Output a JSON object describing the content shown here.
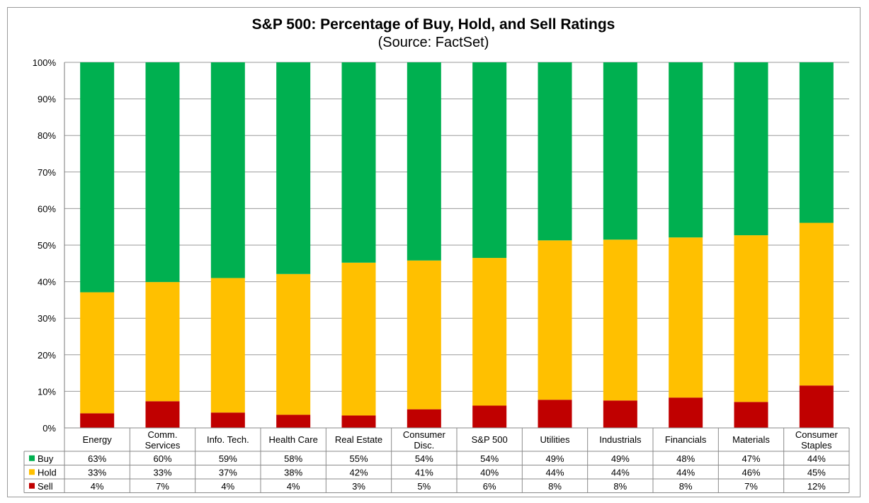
{
  "chart_data": {
    "type": "bar",
    "stacked": true,
    "title": "S&P 500: Percentage of Buy, Hold, and Sell Ratings",
    "subtitle": "(Source: FactSet)",
    "categories": [
      [
        "Energy"
      ],
      [
        "Comm.",
        "Services"
      ],
      [
        "Info. Tech."
      ],
      [
        "Health Care"
      ],
      [
        "Real Estate"
      ],
      [
        "Consumer",
        "Disc."
      ],
      [
        "S&P 500"
      ],
      [
        "Utilities"
      ],
      [
        "Industrials"
      ],
      [
        "Financials"
      ],
      [
        "Materials"
      ],
      [
        "Consumer",
        "Staples"
      ]
    ],
    "series": [
      {
        "name": "Sell",
        "color": "#c00000",
        "values": [
          4,
          7,
          4,
          4,
          3,
          5,
          6,
          8,
          8,
          8,
          7,
          12
        ],
        "heights": [
          4,
          7.3,
          4.2,
          3.6,
          3.4,
          5.1,
          6.1,
          7.7,
          7.5,
          8.3,
          7.1,
          11.6
        ]
      },
      {
        "name": "Hold",
        "color": "#ffc000",
        "values": [
          33,
          33,
          37,
          38,
          42,
          41,
          40,
          44,
          44,
          44,
          46,
          45
        ],
        "heights": [
          33.1,
          32.6,
          36.8,
          38.5,
          41.8,
          40.7,
          40.4,
          43.6,
          44,
          43.8,
          45.6,
          44.5
        ]
      },
      {
        "name": "Buy",
        "color": "#00b050",
        "values": [
          63,
          60,
          59,
          58,
          55,
          54,
          54,
          49,
          49,
          48,
          47,
          44
        ],
        "heights": [
          62.9,
          60.1,
          59,
          57.9,
          54.8,
          54.2,
          53.5,
          48.7,
          48.5,
          47.9,
          47.3,
          43.9
        ]
      }
    ],
    "table_rows": [
      "Buy",
      "Hold",
      "Sell"
    ],
    "yticks": [
      "0%",
      "10%",
      "20%",
      "30%",
      "40%",
      "50%",
      "60%",
      "70%",
      "80%",
      "90%",
      "100%"
    ],
    "ylim": [
      0,
      100
    ],
    "grid": true,
    "legend": "data-table"
  }
}
